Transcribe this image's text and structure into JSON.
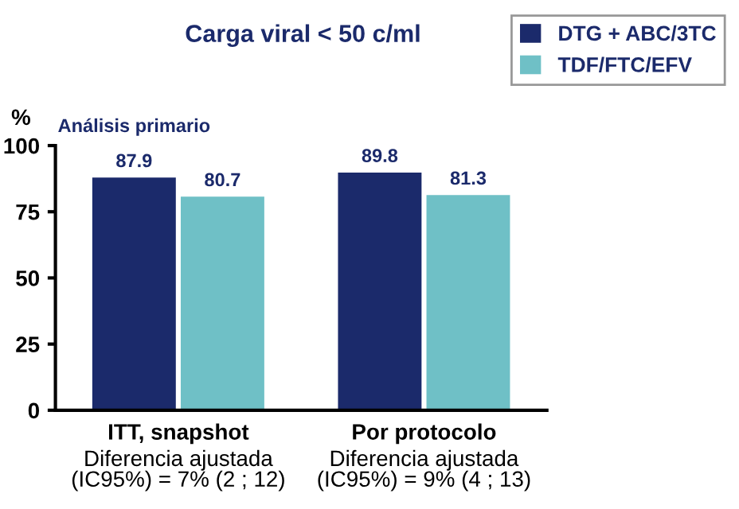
{
  "chart_data": {
    "type": "bar",
    "title": "Carga viral < 50 c/ml",
    "ylabel": "%",
    "categories": [
      "ITT, snapshot\nDiferencia ajustada\n(IC95%) = 7% (2 ; 12)",
      "Por protocolo\nDiferencia ajustada\n(IC95%) = 9% (4 ; 13)"
    ],
    "series": [
      {
        "name": "DTG + ABC/3TC",
        "color": "#1b2a6b",
        "values": [
          87.9,
          89.8
        ]
      },
      {
        "name": "TDF/FTC/EFV",
        "color": "#6fc0c6",
        "values": [
          80.7,
          81.3
        ]
      }
    ],
    "ylim": [
      0,
      100
    ],
    "yticks": [
      0,
      25,
      50,
      75,
      100
    ],
    "data_labels": true,
    "grid": false,
    "legend": "top right",
    "annotations": [
      "Análisis primario"
    ]
  }
}
